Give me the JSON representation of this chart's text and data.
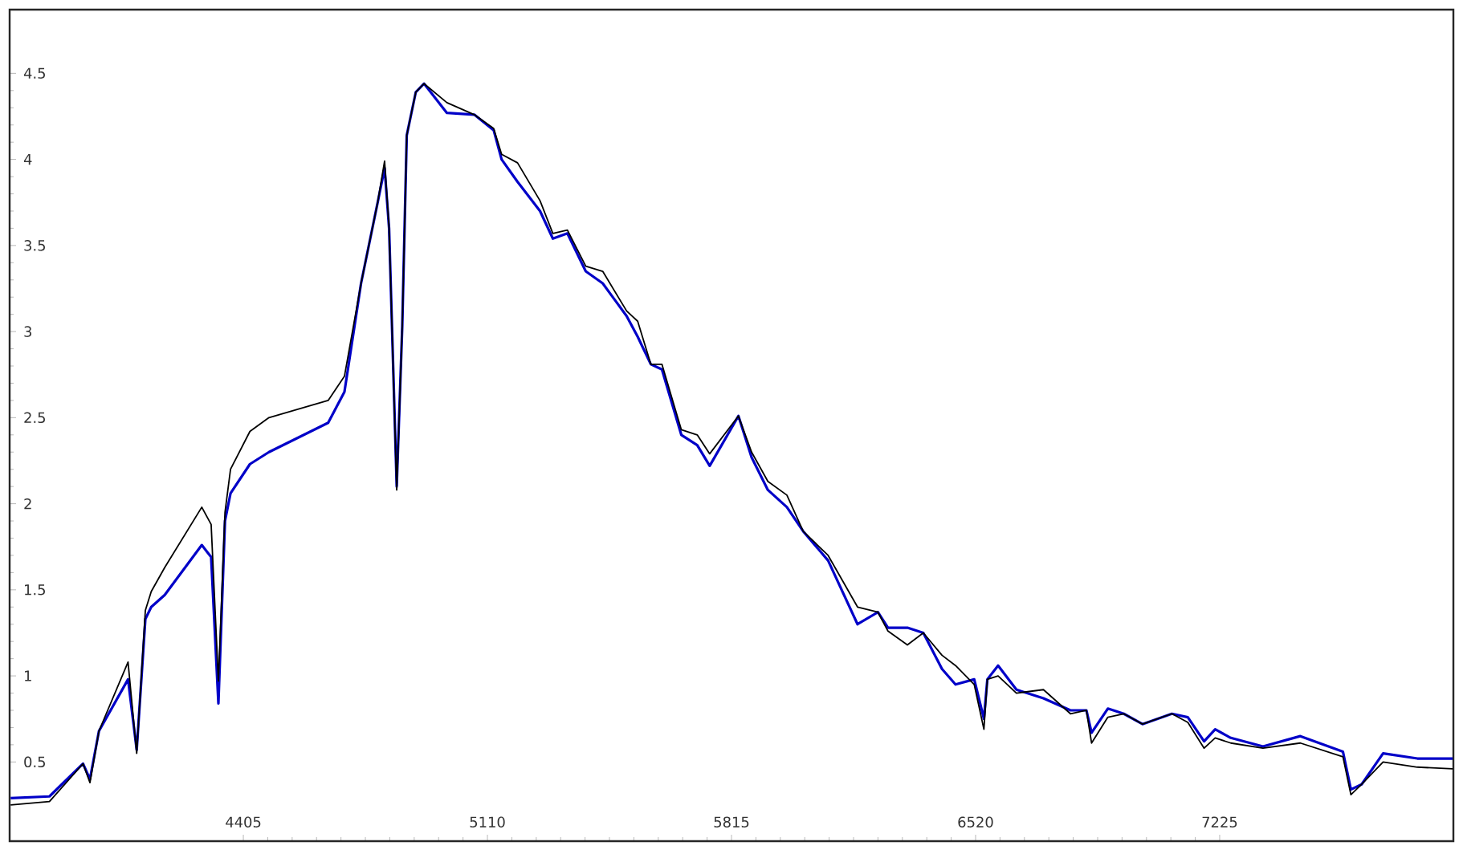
{
  "chart_data": {
    "type": "line",
    "xlim": [
      3730,
      7900
    ],
    "ylim": [
      0.04,
      4.87
    ],
    "xticks": [
      4405,
      5110,
      5815,
      6520,
      7225
    ],
    "yticks": [
      0.5,
      1,
      1.5,
      2,
      2.5,
      3,
      3.5,
      4,
      4.5
    ],
    "grid": false,
    "legend": false,
    "marker": "none",
    "line_style": "solid",
    "x": [
      3733,
      3845,
      3942,
      3962,
      3988,
      4072,
      4097,
      4122,
      4139,
      4178,
      4285,
      4312,
      4333,
      4352,
      4368,
      4424,
      4479,
      4650,
      4697,
      4745,
      4793,
      4813,
      4826,
      4848,
      4864,
      4877,
      4903,
      4927,
      4993,
      5072,
      5128,
      5151,
      5197,
      5262,
      5299,
      5341,
      5394,
      5443,
      5512,
      5544,
      5582,
      5614,
      5670,
      5716,
      5752,
      5835,
      5873,
      5920,
      5975,
      6022,
      6094,
      6179,
      6238,
      6267,
      6323,
      6369,
      6423,
      6462,
      6516,
      6544,
      6554,
      6585,
      6638,
      6716,
      6794,
      6840,
      6855,
      6902,
      6948,
      7002,
      7087,
      7133,
      7180,
      7212,
      7257,
      7350,
      7458,
      7581,
      7604,
      7635,
      7697,
      7796,
      7898
    ],
    "series": [
      {
        "color": "#0000c8",
        "values": [
          0.29,
          0.3,
          0.49,
          0.4,
          0.68,
          0.98,
          0.57,
          1.33,
          1.4,
          1.47,
          1.76,
          1.69,
          0.84,
          1.9,
          2.06,
          2.23,
          2.3,
          2.47,
          2.65,
          3.28,
          3.75,
          3.95,
          3.6,
          2.1,
          3.03,
          4.14,
          4.39,
          4.44,
          4.27,
          4.26,
          4.17,
          4.0,
          3.87,
          3.7,
          3.54,
          3.57,
          3.35,
          3.28,
          3.09,
          2.97,
          2.81,
          2.78,
          2.4,
          2.34,
          2.22,
          2.51,
          2.27,
          2.08,
          1.98,
          1.84,
          1.67,
          1.3,
          1.37,
          1.28,
          1.28,
          1.25,
          1.04,
          0.95,
          0.98,
          0.75,
          0.98,
          1.06,
          0.92,
          0.87,
          0.8,
          0.8,
          0.67,
          0.81,
          0.78,
          0.72,
          0.78,
          0.76,
          0.62,
          0.69,
          0.64,
          0.59,
          0.65,
          0.56,
          0.34,
          0.37,
          0.55,
          0.52,
          0.52
        ]
      },
      {
        "color": "#000000",
        "values": [
          0.25,
          0.27,
          0.49,
          0.38,
          0.68,
          1.08,
          0.55,
          1.38,
          1.49,
          1.63,
          1.98,
          1.88,
          0.97,
          1.95,
          2.2,
          2.42,
          2.5,
          2.6,
          2.74,
          3.28,
          3.75,
          3.99,
          3.6,
          2.08,
          3.03,
          4.14,
          4.39,
          4.44,
          4.33,
          4.26,
          4.18,
          4.03,
          3.98,
          3.76,
          3.57,
          3.59,
          3.38,
          3.35,
          3.12,
          3.06,
          2.81,
          2.81,
          2.43,
          2.4,
          2.29,
          2.51,
          2.3,
          2.13,
          2.05,
          1.84,
          1.7,
          1.4,
          1.37,
          1.26,
          1.18,
          1.25,
          1.12,
          1.06,
          0.95,
          0.69,
          0.98,
          1.0,
          0.9,
          0.92,
          0.78,
          0.8,
          0.61,
          0.76,
          0.78,
          0.72,
          0.78,
          0.73,
          0.58,
          0.64,
          0.61,
          0.58,
          0.61,
          0.53,
          0.31,
          0.37,
          0.5,
          0.47,
          0.46
        ]
      }
    ]
  }
}
